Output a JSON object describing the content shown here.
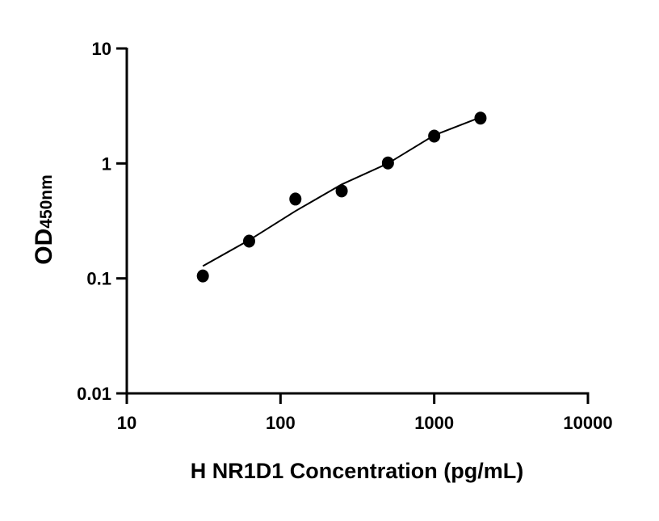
{
  "chart_data": {
    "type": "scatter",
    "title": "",
    "xlabel": "H NR1D1 Concentration (pg/mL)",
    "ylabel": "OD",
    "ylabel_subscript": "450nm",
    "xscale": "log",
    "yscale": "log",
    "xlim": [
      10,
      10000
    ],
    "ylim": [
      0.01,
      10
    ],
    "xticks": [
      10,
      100,
      1000,
      10000
    ],
    "xtick_labels": [
      "10",
      "100",
      "1000",
      "10000"
    ],
    "yticks": [
      0.01,
      0.1,
      1,
      10
    ],
    "ytick_labels": [
      "0.01",
      "0.1",
      "1",
      "10"
    ],
    "grid": false,
    "points": {
      "x": [
        31.25,
        62.5,
        125,
        250,
        500,
        1000,
        2000
      ],
      "y": [
        0.105,
        0.211,
        0.49,
        0.577,
        1.01,
        1.73,
        2.48
      ]
    },
    "fit_curve": {
      "x": [
        31.25,
        62.5,
        125,
        250,
        500,
        1000,
        2000
      ],
      "y": [
        0.128,
        0.215,
        0.385,
        0.657,
        1.0,
        1.76,
        2.52
      ]
    },
    "colors": {
      "marker": "#000000",
      "line": "#000000"
    }
  }
}
